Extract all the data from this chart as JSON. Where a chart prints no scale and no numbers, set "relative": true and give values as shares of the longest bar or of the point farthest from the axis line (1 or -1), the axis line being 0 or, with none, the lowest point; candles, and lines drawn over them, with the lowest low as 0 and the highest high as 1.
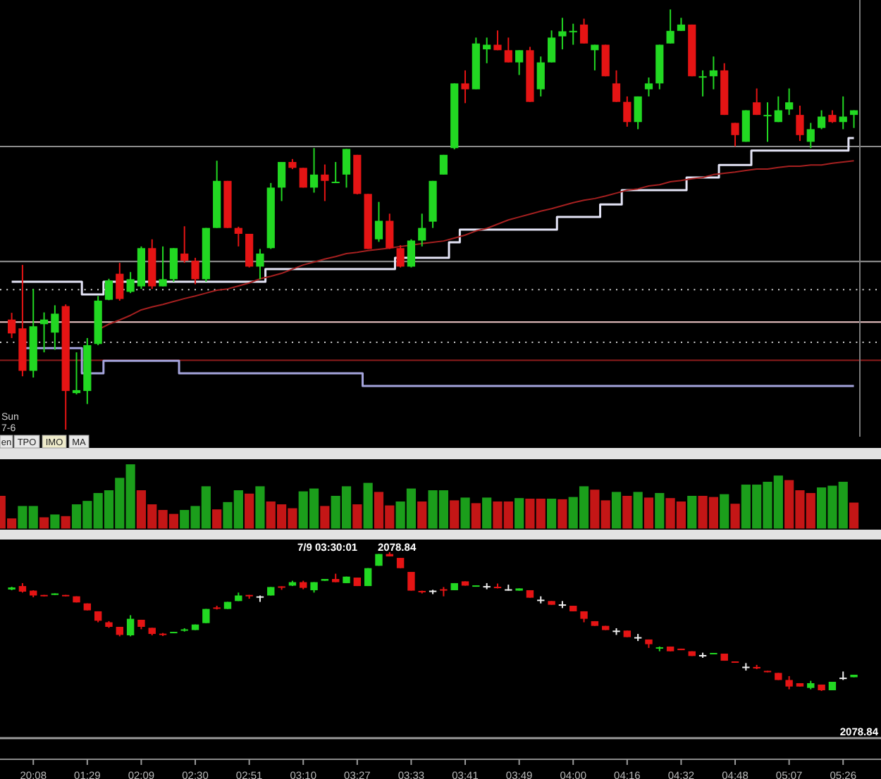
{
  "chart_data": [
    {
      "type": "candlestick",
      "relative": true,
      "tick_labels": false,
      "categories": [
        null,
        null,
        null,
        null,
        null,
        null,
        null,
        null,
        null,
        null,
        null,
        null,
        null,
        null,
        null,
        null,
        null,
        null,
        null,
        null,
        null,
        null,
        null,
        null,
        null,
        null,
        null,
        null,
        null,
        null,
        null,
        null,
        null,
        null,
        null,
        null,
        null,
        null,
        null,
        null,
        null,
        null,
        null,
        null,
        null,
        null,
        null,
        null,
        null,
        null,
        null,
        null,
        null,
        null,
        null,
        null,
        null,
        null,
        null,
        null,
        null,
        null,
        null,
        null,
        null,
        null,
        null,
        null,
        null,
        null,
        null,
        null,
        null,
        null,
        null,
        null,
        null,
        null,
        null
      ],
      "ohlc": [
        [
          0.262,
          0.278,
          0.218,
          0.229
        ],
        [
          0.241,
          0.392,
          0.127,
          0.14
        ],
        [
          0.14,
          0.335,
          0.124,
          0.246
        ],
        [
          0.251,
          0.279,
          0.184,
          0.262
        ],
        [
          0.231,
          0.296,
          0.19,
          0.276
        ],
        [
          0.294,
          0.298,
          0,
          0.092
        ],
        [
          0.087,
          0.184,
          0.084,
          0.094
        ],
        [
          0.092,
          0.218,
          0.061,
          0.201
        ],
        [
          0.204,
          0.318,
          0.201,
          0.307
        ],
        [
          0.309,
          0.359,
          0.308,
          0.355
        ],
        [
          0.371,
          0.397,
          0.307,
          0.311
        ],
        [
          0.328,
          0.375,
          0.325,
          0.358
        ],
        [
          0.341,
          0.436,
          0.335,
          0.432
        ],
        [
          0.432,
          0.453,
          0.335,
          0.341
        ],
        [
          0.341,
          0.436,
          0.341,
          0.358
        ],
        [
          0.358,
          0.432,
          0.352,
          0.432
        ],
        [
          0.419,
          0.484,
          0.397,
          0.402
        ],
        [
          0.402,
          0.409,
          0.346,
          0.358
        ],
        [
          0.358,
          0.48,
          0.352,
          0.48
        ],
        [
          0.48,
          0.64,
          0.48,
          0.592
        ],
        [
          0.592,
          0.592,
          0.48,
          0.48
        ],
        [
          0.48,
          0.483,
          0.436,
          0.466
        ],
        [
          0.466,
          0.466,
          0.386,
          0.388
        ],
        [
          0.388,
          0.43,
          0.358,
          0.419
        ],
        [
          0.432,
          0.587,
          0.43,
          0.576
        ],
        [
          0.576,
          0.637,
          0.544,
          0.637
        ],
        [
          0.637,
          0.644,
          0.62,
          0.623
        ],
        [
          0.623,
          0.623,
          0.576,
          0.576
        ],
        [
          0.576,
          0.67,
          0.564,
          0.607
        ],
        [
          0.607,
          0.631,
          0.544,
          0.592
        ],
        [
          0.59,
          0.637,
          0.589,
          0.59
        ],
        [
          0.607,
          0.668,
          0.576,
          0.668
        ],
        [
          0.654,
          0.654,
          0.56,
          0.561
        ],
        [
          0.561,
          0.561,
          0.43,
          0.43
        ],
        [
          0.453,
          0.542,
          0.447,
          0.497
        ],
        [
          0.497,
          0.514,
          0.43,
          0.432
        ],
        [
          0.432,
          0.439,
          0.386,
          0.388
        ],
        [
          0.388,
          0.453,
          0.386,
          0.45
        ],
        [
          0.45,
          0.514,
          0.436,
          0.48
        ],
        [
          0.495,
          0.592,
          0.48,
          0.592
        ],
        [
          0.607,
          0.654,
          0.607,
          0.654
        ],
        [
          0.67,
          0.824,
          0.667,
          0.824
        ],
        [
          0.824,
          0.855,
          0.777,
          0.81
        ],
        [
          0.81,
          0.933,
          0.81,
          0.919
        ],
        [
          0.905,
          0.933,
          0.872,
          0.916
        ],
        [
          0.916,
          0.95,
          0.903,
          0.903
        ],
        [
          0.903,
          0.933,
          0.874,
          0.874
        ],
        [
          0.874,
          0.903,
          0.844,
          0.903
        ],
        [
          0.903,
          0.911,
          0.78,
          0.78
        ],
        [
          0.81,
          0.888,
          0.793,
          0.874
        ],
        [
          0.874,
          0.95,
          0.874,
          0.933
        ],
        [
          0.936,
          0.98,
          0.905,
          0.948
        ],
        [
          0.946,
          0.966,
          0.916,
          0.949
        ],
        [
          0.964,
          0.978,
          0.919,
          0.919
        ],
        [
          0.903,
          0.916,
          0.855,
          0.916
        ],
        [
          0.916,
          0.916,
          0.841,
          0.841
        ],
        [
          0.824,
          0.855,
          0.78,
          0.78
        ],
        [
          0.78,
          0.793,
          0.721,
          0.732
        ],
        [
          0.732,
          0.793,
          0.715,
          0.793
        ],
        [
          0.81,
          0.838,
          0.793,
          0.824
        ],
        [
          0.824,
          0.916,
          0.81,
          0.916
        ],
        [
          0.919,
          1,
          0.919,
          0.949
        ],
        [
          0.949,
          0.98,
          0.949,
          0.964
        ],
        [
          0.964,
          0.964,
          0.841,
          0.841
        ],
        [
          0.841,
          0.855,
          0.793,
          0.841
        ],
        [
          0.841,
          0.888,
          0.81,
          0.855
        ],
        [
          0.855,
          0.872,
          0.749,
          0.749
        ],
        [
          0.73,
          0.73,
          0.674,
          0.701
        ],
        [
          0.685,
          0.76,
          0.685,
          0.76
        ],
        [
          0.779,
          0.812,
          0.749,
          0.749
        ],
        [
          0.749,
          0.779,
          0.685,
          0.749
        ],
        [
          0.732,
          0.793,
          0.732,
          0.76
        ],
        [
          0.762,
          0.812,
          0.749,
          0.779
        ],
        [
          0.749,
          0.771,
          0.687,
          0.701
        ],
        [
          0.685,
          0.73,
          0.67,
          0.715
        ],
        [
          0.718,
          0.76,
          0.715,
          0.745
        ],
        [
          0.749,
          0.76,
          0.73,
          0.732
        ],
        [
          0.732,
          0.793,
          0.715,
          0.745
        ],
        [
          0.749,
          0.76,
          0.718,
          0.76
        ]
      ],
      "colors": [
        "#e51414",
        "#e51414",
        "#22d822",
        "#22d822",
        "#22d822",
        "#e51414",
        "#22d822",
        "#22d822",
        "#22d822",
        "#22d822",
        "#e51414",
        "#22d822",
        "#22d822",
        "#e51414",
        "#22d822",
        "#22d822",
        "#e51414",
        "#e51414",
        "#22d822",
        "#22d822",
        "#e51414",
        "#e51414",
        "#e51414",
        "#22d822",
        "#22d822",
        "#22d822",
        "#e51414",
        "#e51414",
        "#22d822",
        "#e51414",
        "#22d822",
        "#22d822",
        "#e51414",
        "#e51414",
        "#22d822",
        "#e51414",
        "#e51414",
        "#22d822",
        "#22d822",
        "#22d822",
        "#22d822",
        "#22d822",
        "#e51414",
        "#22d822",
        "#22d822",
        "#e51414",
        "#e51414",
        "#22d822",
        "#e51414",
        "#22d822",
        "#22d822",
        "#22d822",
        "#22d822",
        "#e51414",
        "#22d822",
        "#e51414",
        "#e51414",
        "#e51414",
        "#22d822",
        "#22d822",
        "#22d822",
        "#22d822",
        "#22d822",
        "#e51414",
        "#22d822",
        "#22d822",
        "#e51414",
        "#e51414",
        "#22d822",
        "#e51414",
        "#22d822",
        "#22d822",
        "#22d822",
        "#e51414",
        "#22d822",
        "#22d822",
        "#e51414",
        "#22d822",
        "#22d822"
      ],
      "series": [
        {
          "type": "step",
          "color": "#e4e4f6",
          "values": [
            0.352,
            0.352,
            0.352,
            0.352,
            0.352,
            0.352,
            0.352,
            0.322,
            0.322,
            0.352,
            0.352,
            0.352,
            0.352,
            0.352,
            0.352,
            0.352,
            0.352,
            0.352,
            0.352,
            0.352,
            0.352,
            0.352,
            0.352,
            0.352,
            0.382,
            0.382,
            0.382,
            0.382,
            0.382,
            0.382,
            0.382,
            0.382,
            0.382,
            0.382,
            0.382,
            0.382,
            0.409,
            0.409,
            0.409,
            0.409,
            0.409,
            0.446,
            0.476,
            0.476,
            0.476,
            0.476,
            0.476,
            0.476,
            0.476,
            0.476,
            0.476,
            0.506,
            0.506,
            0.506,
            0.506,
            0.536,
            0.536,
            0.57,
            0.57,
            0.57,
            0.57,
            0.57,
            0.57,
            0.6,
            0.6,
            0.6,
            0.63,
            0.63,
            0.63,
            0.664,
            0.664,
            0.664,
            0.664,
            0.664,
            0.664,
            0.664,
            0.664,
            0.664,
            0.694
          ]
        },
        {
          "type": "step",
          "color": "#a4a4dc",
          "values": [
            null,
            0.194,
            0.194,
            0.194,
            0.194,
            0.194,
            0.194,
            0.134,
            0.134,
            0.164,
            0.164,
            0.164,
            0.164,
            0.164,
            0.164,
            0.164,
            0.134,
            0.134,
            0.134,
            0.134,
            0.134,
            0.134,
            0.134,
            0.134,
            0.134,
            0.134,
            0.134,
            0.134,
            0.134,
            0.134,
            0.134,
            0.134,
            0.134,
            0.104,
            0.104,
            0.104,
            0.104,
            0.104,
            0.104,
            0.104,
            0.104,
            0.104,
            0.104,
            0.104,
            0.104,
            0.104,
            0.104,
            0.104,
            0.104,
            0.104,
            0.104,
            0.104,
            0.104,
            0.104,
            0.104,
            0.104,
            0.104,
            0.104,
            0.104,
            0.104,
            0.104,
            0.104,
            0.104,
            0.104,
            0.104,
            0.104,
            0.104,
            0.104,
            0.104,
            0.104,
            0.104,
            0.104,
            0.104,
            0.104,
            0.104,
            0.104,
            0.104,
            0.104,
            0.104
          ]
        },
        {
          "type": "line",
          "color": "#a52020",
          "values": [
            null,
            null,
            null,
            null,
            null,
            null,
            null,
            null,
            0.238,
            0.251,
            0.261,
            0.272,
            0.285,
            0.292,
            0.298,
            0.305,
            0.312,
            0.318,
            0.325,
            0.332,
            0.335,
            0.342,
            0.349,
            0.359,
            0.365,
            0.372,
            0.382,
            0.392,
            0.399,
            0.406,
            0.412,
            0.419,
            0.422,
            0.426,
            0.429,
            0.432,
            0.436,
            0.439,
            0.443,
            0.446,
            0.449,
            0.456,
            0.463,
            0.473,
            0.479,
            0.489,
            0.499,
            0.506,
            0.513,
            0.52,
            0.526,
            0.533,
            0.54,
            0.546,
            0.55,
            0.556,
            0.563,
            0.57,
            0.573,
            0.58,
            0.583,
            0.59,
            0.593,
            0.597,
            0.6,
            0.607,
            0.61,
            0.613,
            0.617,
            0.62,
            0.62,
            0.624,
            0.627,
            0.627,
            0.63,
            0.63,
            0.634,
            0.637,
            0.64
          ]
        }
      ],
      "ref_lines": [
        {
          "axis": "y",
          "value": 0.674,
          "color": "#8c8c8c"
        },
        {
          "axis": "y",
          "value": 0.4,
          "color": "#9a9a9a"
        },
        {
          "axis": "y",
          "value": 0.333,
          "color": "#d0d0d0",
          "line_style": "dotted"
        },
        {
          "axis": "y",
          "value": 0.256,
          "color": "#f2caca"
        },
        {
          "axis": "y",
          "value": 0.208,
          "color": "#d0d0d0",
          "line_style": "dotted"
        },
        {
          "axis": "y",
          "value": 0.165,
          "color": "#8e1c1c"
        }
      ],
      "annotations": [
        "Sun",
        "7-6",
        "en",
        "TPO",
        "IMO",
        "MA"
      ]
    },
    {
      "type": "bar",
      "relative": true,
      "tick_labels": false,
      "categories": [
        null,
        null,
        null,
        null,
        null,
        null,
        null,
        null,
        null,
        null,
        null,
        null,
        null,
        null,
        null,
        null,
        null,
        null,
        null,
        null,
        null,
        null,
        null,
        null,
        null,
        null,
        null,
        null,
        null,
        null,
        null,
        null,
        null,
        null,
        null,
        null,
        null,
        null,
        null,
        null,
        null,
        null,
        null,
        null,
        null,
        null,
        null,
        null,
        null,
        null,
        null,
        null,
        null,
        null,
        null,
        null,
        null,
        null,
        null,
        null,
        null,
        null,
        null,
        null,
        null,
        null,
        null,
        null,
        null,
        null,
        null,
        null,
        null,
        null,
        null,
        null,
        null,
        null,
        null,
        null
      ],
      "values": [
        0.509,
        0.158,
        0.351,
        0.351,
        0.175,
        0.219,
        0.193,
        0.377,
        0.43,
        0.553,
        0.596,
        0.789,
        1,
        0.596,
        0.377,
        0.289,
        0.228,
        0.289,
        0.351,
        0.658,
        0.298,
        0.412,
        0.596,
        0.544,
        0.658,
        0.421,
        0.377,
        0.316,
        0.579,
        0.623,
        0.351,
        0.509,
        0.658,
        0.377,
        0.711,
        0.57,
        0.36,
        0.421,
        0.623,
        0.421,
        0.596,
        0.596,
        0.439,
        0.482,
        0.395,
        0.482,
        0.421,
        0.421,
        0.474,
        0.465,
        0.465,
        0.465,
        0.456,
        0.491,
        0.658,
        0.605,
        0.439,
        0.57,
        0.509,
        0.57,
        0.482,
        0.553,
        0.474,
        0.421,
        0.509,
        0.509,
        0.491,
        0.535,
        0.386,
        0.684,
        0.684,
        0.728,
        0.825,
        0.754,
        0.596,
        0.553,
        0.64,
        0.667,
        0.728,
        0.404
      ],
      "colors": [
        "#c41616",
        "#c41616",
        "#1b9e1b",
        "#1b9e1b",
        "#c41616",
        "#1b9e1b",
        "#c41616",
        "#1b9e1b",
        "#1b9e1b",
        "#1b9e1b",
        "#1b9e1b",
        "#1b9e1b",
        "#1b9e1b",
        "#c41616",
        "#c41616",
        "#c41616",
        "#c41616",
        "#1b9e1b",
        "#1b9e1b",
        "#1b9e1b",
        "#c41616",
        "#1b9e1b",
        "#1b9e1b",
        "#c41616",
        "#1b9e1b",
        "#c41616",
        "#c41616",
        "#c41616",
        "#1b9e1b",
        "#1b9e1b",
        "#c41616",
        "#1b9e1b",
        "#1b9e1b",
        "#c41616",
        "#1b9e1b",
        "#c41616",
        "#c41616",
        "#1b9e1b",
        "#1b9e1b",
        "#c41616",
        "#1b9e1b",
        "#1b9e1b",
        "#c41616",
        "#1b9e1b",
        "#c41616",
        "#1b9e1b",
        "#c41616",
        "#c41616",
        "#1b9e1b",
        "#c41616",
        "#c41616",
        "#1b9e1b",
        "#c41616",
        "#1b9e1b",
        "#1b9e1b",
        "#c41616",
        "#c41616",
        "#1b9e1b",
        "#c41616",
        "#1b9e1b",
        "#c41616",
        "#1b9e1b",
        "#c41616",
        "#c41616",
        "#1b9e1b",
        "#c41616",
        "#c41616",
        "#1b9e1b",
        "#c41616",
        "#1b9e1b",
        "#1b9e1b",
        "#1b9e1b",
        "#1b9e1b",
        "#c41616",
        "#c41616",
        "#c41616",
        "#1b9e1b",
        "#1b9e1b",
        "#1b9e1b",
        "#c41616"
      ]
    },
    {
      "type": "candlestick",
      "relative": true,
      "tick_labels": "x",
      "categories": [
        null,
        null,
        "20:08",
        null,
        null,
        null,
        null,
        "01:29",
        null,
        null,
        null,
        null,
        "02:09",
        null,
        null,
        null,
        null,
        "02:30",
        null,
        null,
        null,
        null,
        "02:51",
        null,
        null,
        null,
        null,
        "03:10",
        null,
        null,
        null,
        null,
        "03:27",
        null,
        null,
        null,
        null,
        "03:33",
        null,
        null,
        null,
        null,
        "03:41",
        null,
        null,
        null,
        null,
        "03:49",
        null,
        null,
        null,
        null,
        "04:00",
        null,
        null,
        null,
        null,
        "04:16",
        null,
        null,
        null,
        null,
        "04:32",
        null,
        null,
        null,
        null,
        "04:48",
        null,
        null,
        null,
        null,
        "05:07",
        null,
        null,
        null,
        null,
        "05:26",
        null
      ],
      "ohlc": [
        [
          0.731,
          0.751,
          0.726,
          0.746
        ],
        [
          0.756,
          0.777,
          0.709,
          0.716
        ],
        [
          0.723,
          0.726,
          0.675,
          0.688
        ],
        [
          0.692,
          0.692,
          0.682,
          0.682
        ],
        [
          0.692,
          0.703,
          0.692,
          0.703
        ],
        [
          0.692,
          0.692,
          0.682,
          0.682
        ],
        [
          0.682,
          0.682,
          0.638,
          0.638
        ],
        [
          0.631,
          0.631,
          0.581,
          0.581
        ],
        [
          0.574,
          0.574,
          0.495,
          0.506
        ],
        [
          0.495,
          0.503,
          0.455,
          0.462
        ],
        [
          0.462,
          0.462,
          0.394,
          0.404
        ],
        [
          0.401,
          0.546,
          0.394,
          0.52
        ],
        [
          0.513,
          0.513,
          0.445,
          0.462
        ],
        [
          0.455,
          0.455,
          0.401,
          0.411
        ],
        [
          0.413,
          0.418,
          0.396,
          0.403
        ],
        [
          0.416,
          0.426,
          0.416,
          0.426
        ],
        [
          0.434,
          0.452,
          0.428,
          0.444
        ],
        [
          0.439,
          0.479,
          0.439,
          0.479
        ],
        [
          0.489,
          0.591,
          0.489,
          0.591
        ],
        [
          0.602,
          0.614,
          0.587,
          0.592
        ],
        [
          0.591,
          0.642,
          0.591,
          0.642
        ],
        [
          0.648,
          0.709,
          0.648,
          0.688
        ],
        [
          0.692,
          0.692,
          0.665,
          0.682
        ],
        [
          0.682,
          0.688,
          0.642,
          0.682
        ],
        [
          0.688,
          0.749,
          0.688,
          0.749
        ],
        [
          0.754,
          0.754,
          0.729,
          0.744
        ],
        [
          0.759,
          0.794,
          0.756,
          0.784
        ],
        [
          0.784,
          0.794,
          0.733,
          0.743
        ],
        [
          0.726,
          0.784,
          0.709,
          0.784
        ],
        [
          0.794,
          0.807,
          0.794,
          0.807
        ],
        [
          0.807,
          0.845,
          0.784,
          0.784
        ],
        [
          0.777,
          0.824,
          0.777,
          0.824
        ],
        [
          0.817,
          0.817,
          0.756,
          0.756
        ],
        [
          0.756,
          0.885,
          0.756,
          0.885
        ],
        [
          0.902,
          0.987,
          0.902,
          0.987
        ],
        [
          0.987,
          1,
          0.97,
          0.97
        ],
        [
          0.959,
          0.959,
          0.885,
          0.885
        ],
        [
          0.858,
          0.858,
          0.723,
          0.723
        ],
        [
          0.721,
          0.723,
          0.703,
          0.711
        ],
        [
          0.723,
          0.729,
          0.698,
          0.723
        ],
        [
          0.733,
          0.749,
          0.682,
          0.723
        ],
        [
          0.726,
          0.777,
          0.726,
          0.777
        ],
        [
          0.79,
          0.79,
          0.759,
          0.759
        ],
        [
          0.751,
          0.761,
          0.751,
          0.761
        ],
        [
          0.756,
          0.777,
          0.733,
          0.756
        ],
        [
          0.751,
          0.774,
          0.739,
          0.746
        ],
        [
          0.733,
          0.766,
          0.723,
          0.733
        ],
        [
          0.723,
          0.739,
          0.723,
          0.739
        ],
        [
          0.726,
          0.726,
          0.672,
          0.672
        ],
        [
          0.658,
          0.682,
          0.631,
          0.658
        ],
        [
          0.648,
          0.648,
          0.621,
          0.621
        ],
        [
          0.624,
          0.648,
          0.597,
          0.624
        ],
        [
          0.614,
          0.614,
          0.574,
          0.574
        ],
        [
          0.574,
          0.574,
          0.495,
          0.52
        ],
        [
          0.503,
          0.503,
          0.469,
          0.469
        ],
        [
          0.469,
          0.469,
          0.439,
          0.439
        ],
        [
          0.435,
          0.452,
          0.404,
          0.435
        ],
        [
          0.435,
          0.435,
          0.388,
          0.388
        ],
        [
          0.388,
          0.411,
          0.36,
          0.388
        ],
        [
          0.371,
          0.371,
          0.31,
          0.337
        ],
        [
          0.305,
          0.32,
          0.286,
          0.315
        ],
        [
          0.32,
          0.32,
          0.286,
          0.286
        ],
        [
          0.305,
          0.305,
          0.294,
          0.294
        ],
        [
          0.286,
          0.286,
          0.252,
          0.252
        ],
        [
          0.259,
          0.276,
          0.239,
          0.259
        ],
        [
          0.264,
          0.274,
          0.264,
          0.274
        ],
        [
          0.269,
          0.269,
          0.218,
          0.218
        ],
        [
          0.213,
          0.213,
          0.203,
          0.203
        ],
        [
          0.175,
          0.201,
          0.147,
          0.175
        ],
        [
          0.173,
          0.188,
          0.157,
          0.162
        ],
        [
          0.145,
          0.145,
          0.135,
          0.135
        ],
        [
          0.13,
          0.13,
          0.079,
          0.079
        ],
        [
          0.079,
          0.107,
          0.012,
          0.032
        ],
        [
          0.056,
          0.056,
          0.032,
          0.032
        ],
        [
          0.022,
          0.073,
          0.012,
          0.056
        ],
        [
          0.046,
          0.046,
          0,
          0.005
        ],
        [
          0.005,
          0.066,
          0.005,
          0.066
        ],
        [
          0.096,
          0.14,
          0.079,
          0.096
        ],
        [
          0.099,
          0.117,
          0.099,
          0.117
        ]
      ],
      "colors": [
        "#22d822",
        "#e51414",
        "#e51414",
        "#e51414",
        "#22d822",
        "#e51414",
        "#e51414",
        "#e51414",
        "#e51414",
        "#e51414",
        "#e51414",
        "#22d822",
        "#e51414",
        "#e51414",
        "#e51414",
        "#22d822",
        "#22d822",
        "#22d822",
        "#22d822",
        "#e51414",
        "#22d822",
        "#22d822",
        "#e51414",
        "#eeeeee",
        "#22d822",
        "#e51414",
        "#22d822",
        "#e51414",
        "#22d822",
        "#22d822",
        "#e51414",
        "#22d822",
        "#e51414",
        "#22d822",
        "#22d822",
        "#e51414",
        "#e51414",
        "#e51414",
        "#e51414",
        "#eeeeee",
        "#e51414",
        "#22d822",
        "#e51414",
        "#22d822",
        "#eeeeee",
        "#e51414",
        "#eeeeee",
        "#22d822",
        "#e51414",
        "#eeeeee",
        "#e51414",
        "#eeeeee",
        "#e51414",
        "#e51414",
        "#e51414",
        "#e51414",
        "#eeeeee",
        "#e51414",
        "#eeeeee",
        "#e51414",
        "#22d822",
        "#e51414",
        "#e51414",
        "#e51414",
        "#eeeeee",
        "#22d822",
        "#e51414",
        "#e51414",
        "#eeeeee",
        "#e51414",
        "#e51414",
        "#e51414",
        "#e51414",
        "#e51414",
        "#22d822",
        "#e51414",
        "#22d822",
        "#eeeeee",
        "#22d822"
      ],
      "annotations": [
        "7/9 03:30:01",
        "2078.84",
        "2078.84"
      ]
    }
  ]
}
